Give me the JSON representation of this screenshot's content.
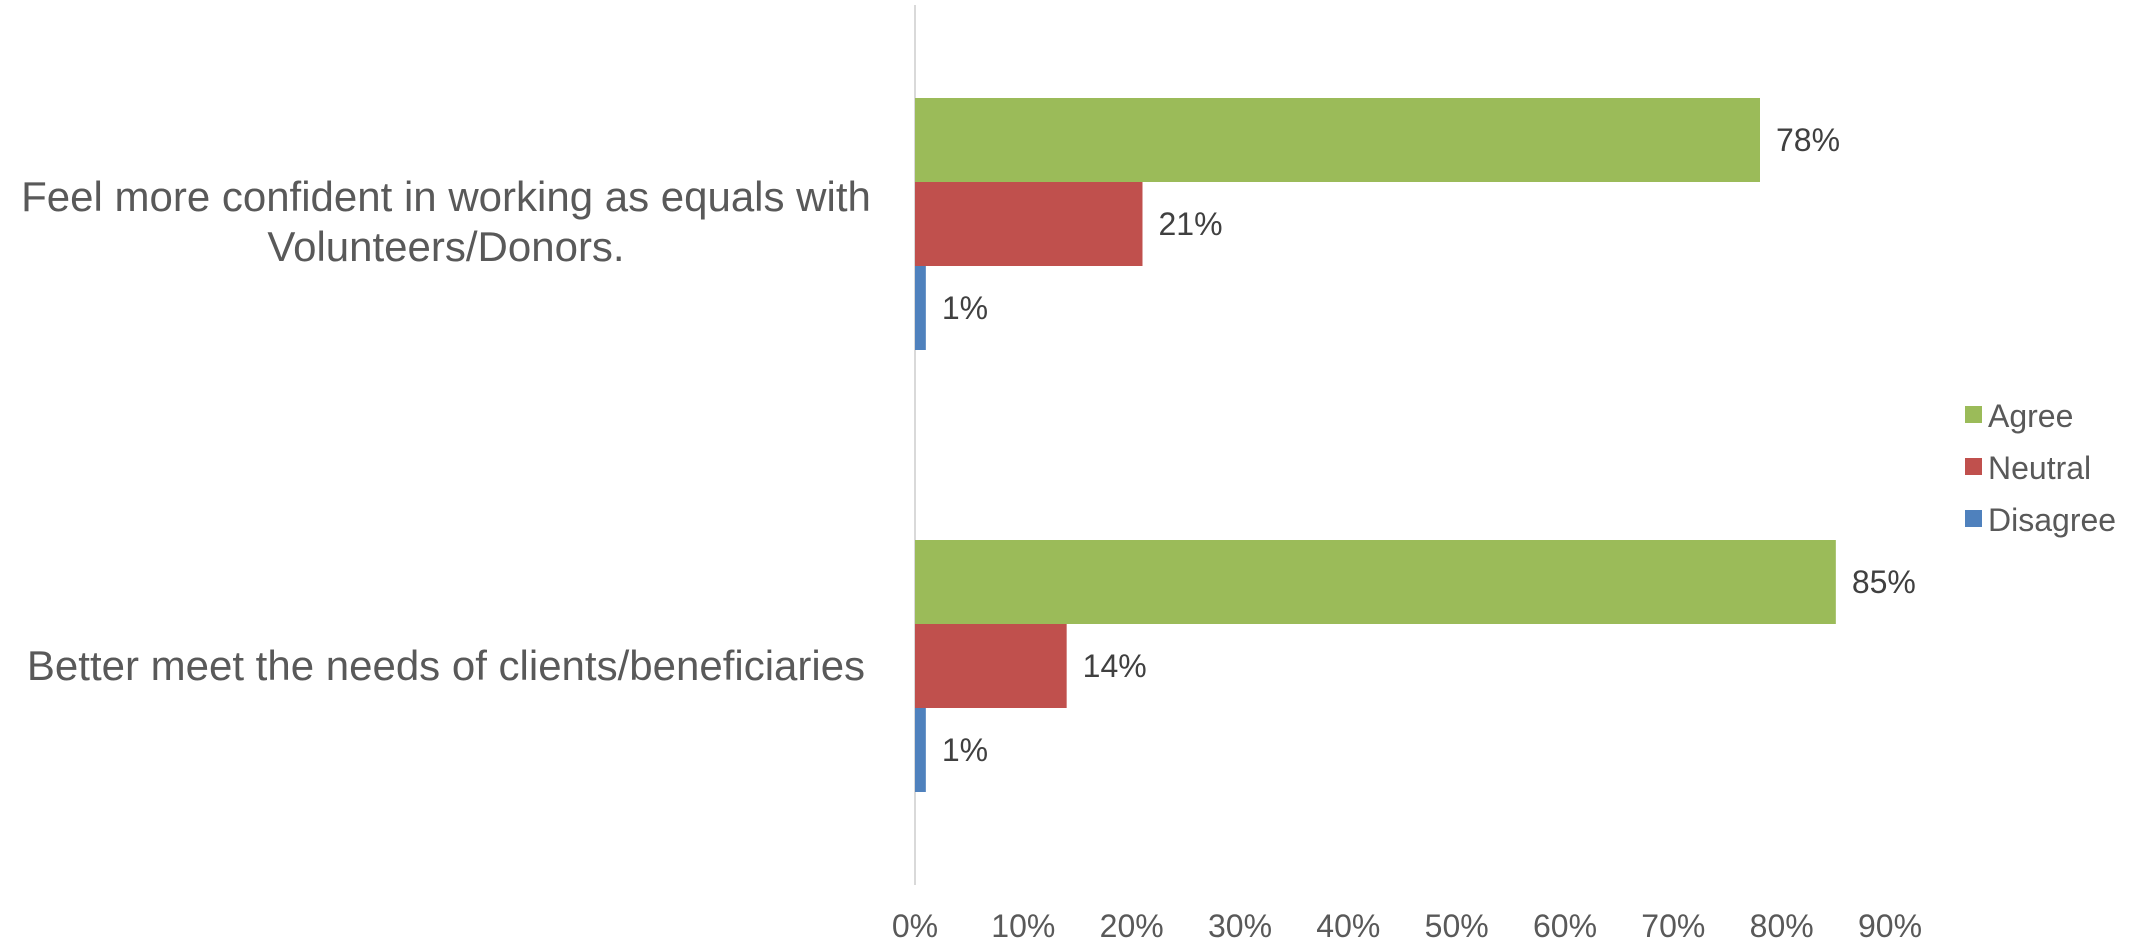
{
  "chart_data": {
    "type": "bar",
    "orientation": "horizontal",
    "categories": [
      [
        "Feel more confident in working as equals with",
        "Volunteers/Donors."
      ],
      [
        "Better meet the needs of clients/beneficiaries"
      ]
    ],
    "series": [
      {
        "name": "Agree",
        "values": [
          78,
          85
        ],
        "labels": [
          "78%",
          "85%"
        ],
        "color": "#9BBB59"
      },
      {
        "name": "Neutral",
        "values": [
          21,
          14
        ],
        "labels": [
          "21%",
          "14%"
        ],
        "color": "#C0504D"
      },
      {
        "name": "Disagree",
        "values": [
          1,
          1
        ],
        "labels": [
          "1%",
          "1%"
        ],
        "color": "#4F81BD"
      }
    ],
    "xlim": [
      0,
      90
    ],
    "xticks": [
      "0%",
      "10%",
      "20%",
      "30%",
      "40%",
      "50%",
      "60%",
      "70%",
      "80%",
      "90%"
    ],
    "grid": false,
    "legend_position": "right"
  }
}
